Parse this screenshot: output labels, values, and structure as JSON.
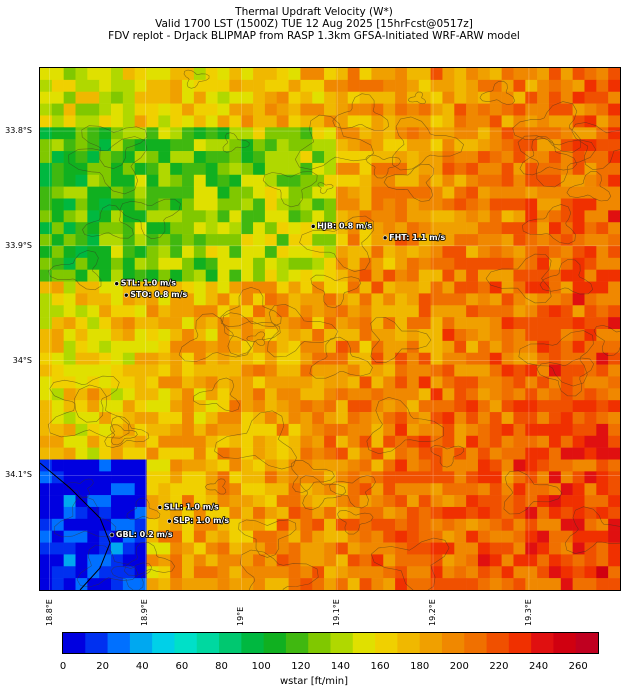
{
  "header": {
    "title": "Thermal Updraft Velocity (W*)",
    "valid": "Valid 1700 LST (1500Z) TUE 12 Aug 2025 [15hrFcst@0517z]",
    "source": "FDV replot - DrJack BLIPMAP from RASP 1.3km GFSA-Initiated WRF-ARW model"
  },
  "map": {
    "lon_range": [
      18.79,
      19.395
    ],
    "lat_range": [
      -34.2,
      -33.745
    ],
    "lat_ticks": [
      {
        "value": -33.8,
        "label": "33.8°S"
      },
      {
        "value": -33.9,
        "label": "33.9°S"
      },
      {
        "value": -34.0,
        "label": "34°S"
      },
      {
        "value": -34.1,
        "label": "34.1°S"
      }
    ],
    "lon_ticks": [
      {
        "value": 18.8,
        "label": "18.8°E"
      },
      {
        "value": 18.9,
        "label": "18.9°E"
      },
      {
        "value": 19.0,
        "label": "19°E"
      },
      {
        "value": 19.1,
        "label": "19.1°E"
      },
      {
        "value": 19.2,
        "label": "19.2°E"
      },
      {
        "value": 19.3,
        "label": "19.3°E"
      }
    ],
    "stations": [
      {
        "label": "HJB: 0.8 m/s",
        "lon": 19.075,
        "lat": -33.883
      },
      {
        "label": "FHT: 1.1 m/s",
        "lon": 19.15,
        "lat": -33.893
      },
      {
        "label": "STL: 1.0 m/s",
        "lon": 18.87,
        "lat": -33.933
      },
      {
        "label": "STO: 0.8 m/s",
        "lon": 18.88,
        "lat": -33.943
      },
      {
        "label": "SLL: 1.0 m/s",
        "lon": 18.915,
        "lat": -34.128
      },
      {
        "label": "SLP: 1.0 m/s",
        "lon": 18.925,
        "lat": -34.14
      },
      {
        "label": "GBL: 0.2 m/s",
        "lon": 18.865,
        "lat": -34.152
      }
    ]
  },
  "colorbar": {
    "title": "wstar [ft/min]",
    "min": 0,
    "max": 270,
    "ticks": [
      "0",
      "20",
      "40",
      "60",
      "80",
      "100",
      "120",
      "140",
      "160",
      "180",
      "200",
      "220",
      "240",
      "260"
    ],
    "colors": [
      "#0000e0",
      "#0030f0",
      "#0070ff",
      "#00a8f0",
      "#00d0e8",
      "#00e0c8",
      "#00d8a0",
      "#00c870",
      "#00b840",
      "#10b020",
      "#40b810",
      "#80c800",
      "#b0d800",
      "#e0e000",
      "#f0d000",
      "#f0b800",
      "#f0a000",
      "#f08800",
      "#f07000",
      "#f05000",
      "#f03000",
      "#e01010",
      "#d00010",
      "#c00020"
    ]
  }
}
